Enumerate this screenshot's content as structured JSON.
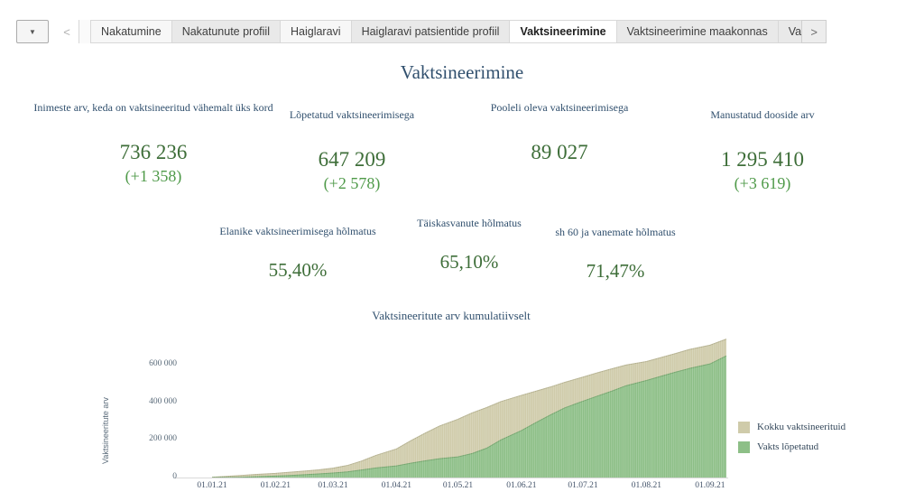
{
  "tab_bar": {
    "dropdown_icon": "▼",
    "prev_icon": "<",
    "next_icon": ">",
    "tabs": [
      {
        "label": "Nakatumine",
        "active": false,
        "shade": "light"
      },
      {
        "label": "Nakatunute profiil",
        "active": false,
        "shade": "gray"
      },
      {
        "label": "Haiglaravi",
        "active": false,
        "shade": "light"
      },
      {
        "label": "Haiglaravi patsientide profiil",
        "active": false,
        "shade": "gray"
      },
      {
        "label": "Vaktsineerimine",
        "active": true,
        "shade": "white"
      },
      {
        "label": "Vaktsineerimine maakonnas",
        "active": false,
        "shade": "gray"
      },
      {
        "label": "Va",
        "active": false,
        "shade": "gray"
      }
    ]
  },
  "title": "Vaktsineerimine",
  "kpis": [
    {
      "label": "Inimeste arv, keda on vaktsineeritud vähemalt üks kord",
      "value": "736 236",
      "delta": "(+1 358)"
    },
    {
      "label": "Lõpetatud vaktsineerimisega",
      "value": "647 209",
      "delta": "(+2 578)"
    },
    {
      "label": "Pooleli oleva vaktsineerimisega",
      "value": "89 027",
      "delta": ""
    },
    {
      "label": "Manustatud dooside arv",
      "value": "1 295 410",
      "delta": "(+3 619)"
    }
  ],
  "coverage": [
    {
      "label": "Elanike  vaktsineerimisega hõlmatus",
      "value": "55,40%"
    },
    {
      "label": "Täiskasvanute hõlmatus",
      "value": "65,10%"
    },
    {
      "label": "sh 60 ja vanemate hõlmatus",
      "value": "71,47%"
    }
  ],
  "chart_data": {
    "type": "area",
    "title": "Vaktsineeritute arv kumulatiivselt",
    "xlabel": "",
    "ylabel": "Vaktsineeritute arv",
    "x_unit": "days since 01.01.21",
    "x_max_day": 251,
    "x_tick_labels": [
      "01.01.21",
      "01.02.21",
      "01.03.21",
      "01.04.21",
      "01.05.21",
      "01.06.21",
      "01.07.21",
      "01.08.21",
      "01.09.21"
    ],
    "x_tick_days": [
      0,
      31,
      59,
      90,
      120,
      151,
      181,
      212,
      243
    ],
    "ylim": [
      0,
      760000
    ],
    "y_ticks": [
      0,
      200000,
      400000,
      600000
    ],
    "y_tick_labels": [
      "0",
      "200 000",
      "400 000",
      "600 000"
    ],
    "grid": false,
    "legend_position": "right",
    "series": [
      {
        "name": "Kokku vaktsineerituid",
        "color": "#cfcbaa",
        "edge_color": "#b2ae8b",
        "x_days": [
          0,
          7,
          14,
          21,
          31,
          38,
          45,
          52,
          59,
          66,
          73,
          80,
          90,
          97,
          104,
          111,
          120,
          127,
          134,
          141,
          151,
          158,
          165,
          172,
          181,
          188,
          195,
          202,
          212,
          219,
          226,
          233,
          243,
          251
        ],
        "values": [
          2000,
          6000,
          11000,
          16000,
          22000,
          28000,
          34000,
          41000,
          50000,
          64000,
          88000,
          118000,
          152000,
          196000,
          236000,
          274000,
          310000,
          344000,
          372000,
          404000,
          437000,
          459000,
          481000,
          506000,
          534000,
          557000,
          578000,
          598000,
          617000,
          638000,
          659000,
          681000,
          704000,
          736236
        ]
      },
      {
        "name": "Vakts lõpetatud",
        "color": "#8dbf87",
        "edge_color": "#6ea268",
        "x_days": [
          0,
          7,
          14,
          21,
          31,
          38,
          45,
          52,
          59,
          66,
          73,
          80,
          90,
          97,
          104,
          111,
          120,
          127,
          134,
          141,
          151,
          158,
          165,
          172,
          181,
          188,
          195,
          202,
          212,
          219,
          226,
          233,
          243,
          251
        ],
        "values": [
          0,
          500,
          1500,
          4000,
          8000,
          11000,
          15000,
          19000,
          24000,
          30000,
          40000,
          51000,
          62000,
          76000,
          89000,
          100000,
          110000,
          128000,
          156000,
          200000,
          250000,
          292000,
          332000,
          370000,
          406000,
          433000,
          459000,
          488000,
          516000,
          538000,
          560000,
          580000,
          604000,
          647209
        ]
      }
    ]
  },
  "colors": {
    "accent_blue": "#31506e",
    "value_green": "#3e6e39",
    "delta_green": "#4f9a49",
    "area_total": "#cfcbaa",
    "area_completed": "#8dbf87",
    "axis_line": "#d9d9d9"
  }
}
